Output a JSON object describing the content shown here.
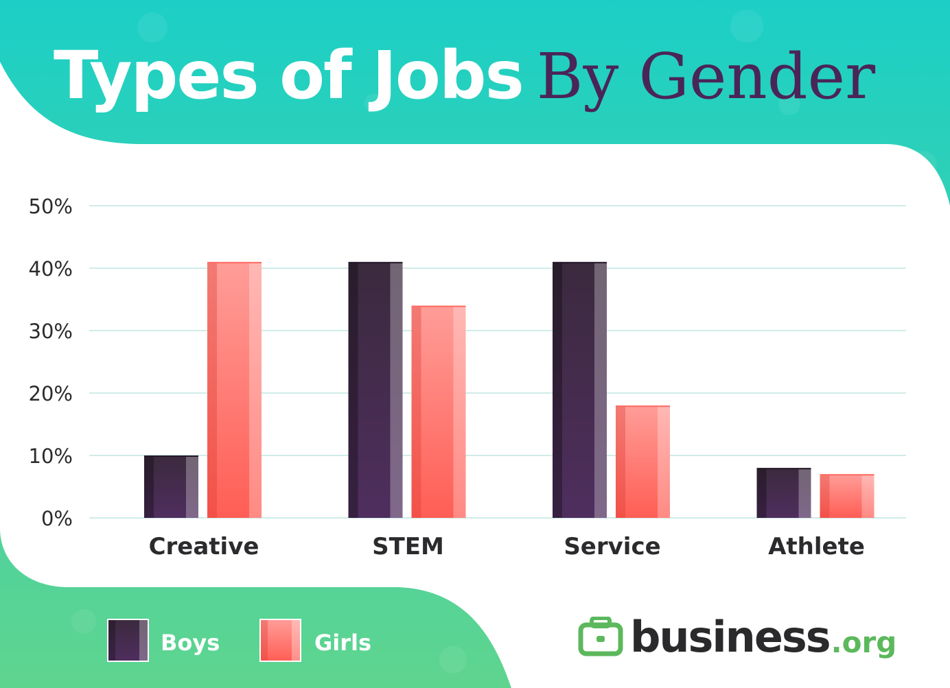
{
  "header": {
    "title_main": "Types of Jobs",
    "title_accent": "By Gender"
  },
  "colors": {
    "background_top": "#1ccfc6",
    "background_bottom": "#5fd48f",
    "boys": "#4a2d52",
    "girls": "#ff7a72",
    "accent_text": "#4a2558",
    "brand_green": "#5cb85c"
  },
  "chart_data": {
    "type": "bar",
    "title": "Types of Jobs By Gender",
    "xlabel": "",
    "ylabel": "",
    "categories": [
      "Creative",
      "STEM",
      "Service",
      "Athlete"
    ],
    "series": [
      {
        "name": "Boys",
        "values": [
          10,
          41,
          41,
          8
        ]
      },
      {
        "name": "Girls",
        "values": [
          41,
          34,
          18,
          7
        ]
      }
    ],
    "ylim": [
      0,
      50
    ],
    "yticks": [
      0,
      10,
      20,
      30,
      40,
      50
    ],
    "ytick_labels": [
      "0%",
      "10%",
      "20%",
      "30%",
      "40%",
      "50%"
    ],
    "grid": true,
    "legend_position": "bottom-left"
  },
  "legend": {
    "items": [
      {
        "label": "Boys",
        "icon": "boys-swatch"
      },
      {
        "label": "Girls",
        "icon": "girls-swatch"
      }
    ]
  },
  "brand": {
    "icon": "briefcase-icon",
    "name": "business",
    "tld": ".org"
  }
}
